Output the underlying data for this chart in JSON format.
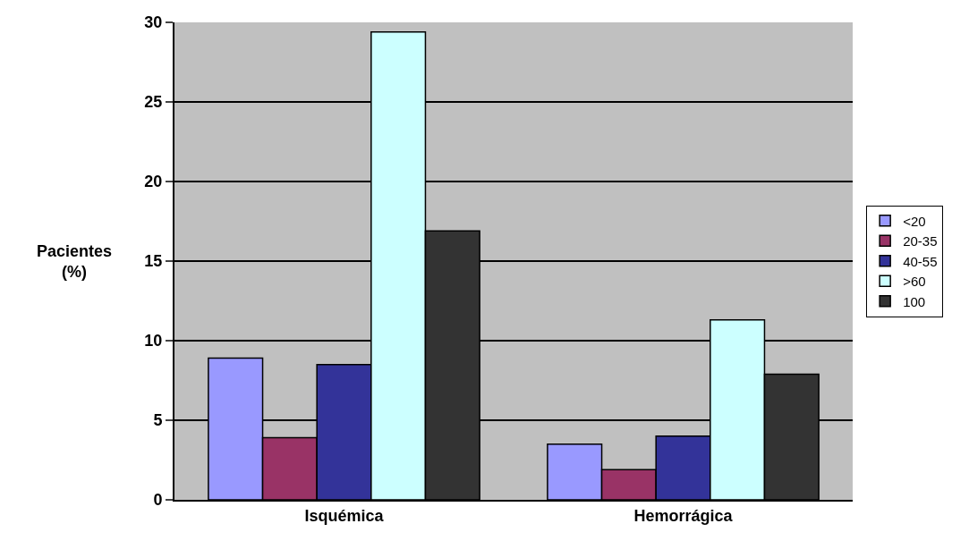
{
  "chart_data": {
    "type": "bar",
    "ylabel": "Pacientes (%)",
    "categories": [
      "Isquémica",
      "Hemorrágica"
    ],
    "series": [
      {
        "name": "<20",
        "color": "#9999ff",
        "values": [
          8.9,
          3.5
        ]
      },
      {
        "name": "20-35",
        "color": "#993366",
        "values": [
          3.9,
          1.9
        ]
      },
      {
        "name": "40-55",
        "color": "#333399",
        "values": [
          8.5,
          4.0
        ]
      },
      {
        "name": ">60",
        "color": "#ccffff",
        "values": [
          29.4,
          11.3
        ]
      },
      {
        "name": "100",
        "color": "#333333",
        "values": [
          16.9,
          7.9
        ]
      }
    ],
    "ylim": [
      0,
      30
    ],
    "yticks": [
      0,
      5,
      10,
      15,
      20,
      25,
      30
    ],
    "grid": "y",
    "legend": "right"
  }
}
